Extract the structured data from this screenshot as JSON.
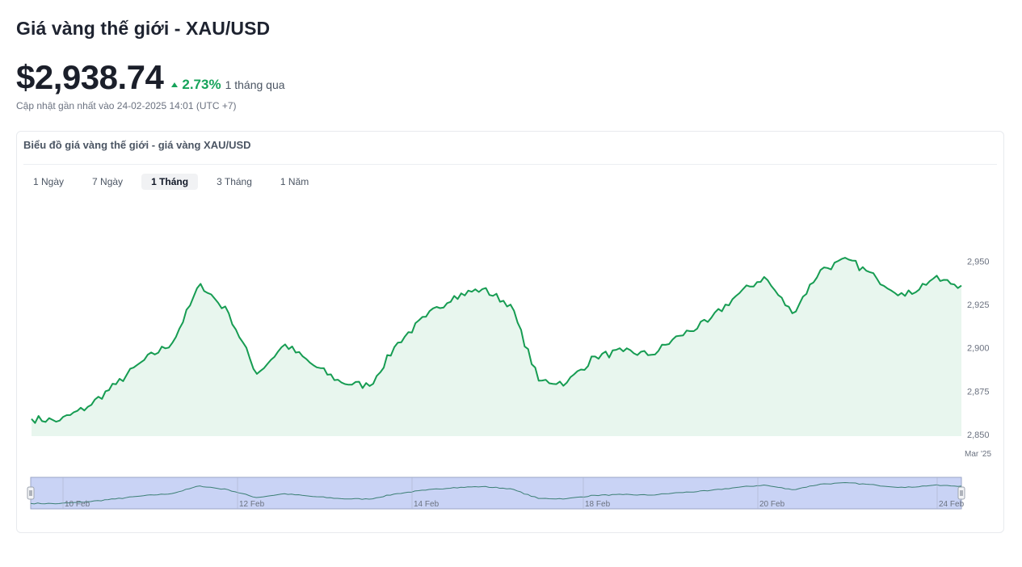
{
  "header": {
    "title": "Giá vàng thế giới - XAU/USD",
    "price": "$2,938.74",
    "change_pct": "2.73%",
    "change_period": "1 tháng qua",
    "updated": "Cập nhật gần nhất vào 24-02-2025 14:01 (UTC +7)"
  },
  "card": {
    "title": "Biểu đồ giá vàng thế giới - giá vàng XAU/USD",
    "tabs": [
      {
        "label": "1 Ngày",
        "active": false
      },
      {
        "label": "7 Ngày",
        "active": false
      },
      {
        "label": "1 Tháng",
        "active": true
      },
      {
        "label": "3 Tháng",
        "active": false
      },
      {
        "label": "1 Năm",
        "active": false
      }
    ]
  },
  "colors": {
    "line": "#169c52",
    "area": "#e8f6ee",
    "navigator_fill": "#c9d3f5",
    "up": "#16a35a"
  },
  "icons": {
    "change": "triangle-up-icon",
    "handles": "grip-handle-icon"
  },
  "chart_data": {
    "type": "area",
    "series": [
      {
        "x": [
          "2025-02-08",
          "2025-02-09",
          "2025-02-10",
          "2025-02-10",
          "2025-02-11",
          "2025-02-11",
          "2025-02-11",
          "2025-02-12",
          "2025-02-12",
          "2025-02-12",
          "2025-02-13",
          "2025-02-13",
          "2025-02-13",
          "2025-02-14",
          "2025-02-14",
          "2025-02-14",
          "2025-02-15",
          "2025-02-16",
          "2025-02-17",
          "2025-02-18",
          "2025-02-18",
          "2025-02-18",
          "2025-02-19",
          "2025-02-19",
          "2025-02-19",
          "2025-02-20",
          "2025-02-20",
          "2025-02-21",
          "2025-02-21",
          "2025-02-22",
          "2025-02-23",
          "2025-02-23",
          "2025-02-24",
          "2025-02-24"
        ],
        "values": [
          2859,
          2858,
          2866,
          2879,
          2893,
          2903,
          2937,
          2920,
          2885,
          2902,
          2890,
          2880,
          2878,
          2903,
          2918,
          2930,
          2934,
          2925,
          2881,
          2880,
          2895,
          2898,
          2896,
          2907,
          2915,
          2930,
          2941,
          2920,
          2945,
          2951,
          2940,
          2930,
          2940,
          2936
        ]
      }
    ],
    "y_ticks": [
      "2,950",
      "2,925",
      "2,900",
      "2,875",
      "2,850"
    ],
    "ylim": [
      2849,
      2961
    ],
    "x_end_label": "Mar '25",
    "navigator_labels": [
      "10 Feb",
      "12 Feb",
      "14 Feb",
      "18 Feb",
      "20 Feb",
      "24 Feb"
    ],
    "grid": false,
    "legend": "none"
  }
}
